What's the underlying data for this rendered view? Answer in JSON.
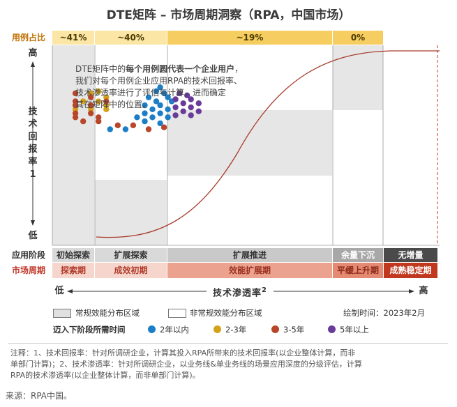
{
  "title": "DTE矩阵 – 市场周期洞察（RPA，中国市场）",
  "share": {
    "label": "用例占比",
    "values": [
      "~41%",
      "~40%",
      "~19%",
      "0%"
    ]
  },
  "y_axis": {
    "high": "高",
    "low": "低",
    "title": "技术回报率",
    "superscript": "1"
  },
  "x_axis": {
    "low": "低",
    "high": "高",
    "title": "技术渗透率",
    "superscript": "2"
  },
  "description": {
    "line1_pre": "DTE矩阵中的",
    "line1_bold": "每个用例圆代表一个企业用户",
    "line1_post": "，",
    "line2": "我们对每个用例企业应用RPA的技术回报率、",
    "line3": "技术渗透率进行了评估与计算，进而确定",
    "line4": "其在矩阵中的位置。"
  },
  "stages": {
    "label": "应用阶段",
    "items": [
      "初始探索",
      "扩展探索",
      "扩展推进",
      "余量下沉",
      "无增量"
    ]
  },
  "cycles": {
    "label": "市场周期",
    "items": [
      "探索期",
      "成效初期",
      "效能扩展期",
      "平缓上升期",
      "成熟稳定期"
    ]
  },
  "legend": {
    "regular": "常规效能分布区域",
    "irregular": "非常规效能分布区域",
    "date": "绘制时间：2023年2月",
    "time_title": "迈入下阶段所需时间",
    "times": [
      {
        "label": "2年以内",
        "color": "#1c7ec6"
      },
      {
        "label": "2-3年",
        "color": "#d4a21a"
      },
      {
        "label": "3-5年",
        "color": "#b8462a"
      },
      {
        "label": "5年以上",
        "color": "#6a3a9a"
      }
    ]
  },
  "notes": {
    "line1": "注释：1、技术回报率：针对所调研企业，计算其投入RPA所带来的技术回报率(以企业整体计算，而非",
    "line2": "单部门计算)；2、技术渗透率：针对所调研企业，以业务线&单业务线的场景应用深度的分级评估，计算",
    "line3": "RPA的技术渗透率(以企业整体计算，而非单部门计算)。"
  },
  "source": "来源：RPA中国。",
  "colors": {
    "blue": "#1c7ec6",
    "gold": "#d4a21a",
    "rust": "#b8462a",
    "purple": "#6a3a9a",
    "curve": "#a83a2a"
  },
  "chart_data": {
    "type": "scatter",
    "description_note": "",
    "x_range": [
      "低",
      "高"
    ],
    "y_range": [
      "低",
      "高"
    ],
    "columns": [
      {
        "stage": "初始探索",
        "cycle": "探索期",
        "share": "~41%"
      },
      {
        "stage": "扩展探索",
        "cycle": "成效初期",
        "share": "~40%"
      },
      {
        "stage": "扩展推进",
        "cycle": "效能扩展期",
        "share": "~19%"
      },
      {
        "stage": "余量下沉",
        "cycle": "平缓上升期",
        "share": "0%"
      },
      {
        "stage": "无增量",
        "cycle": "成熟稳定期",
        "share": ""
      }
    ],
    "series": [
      {
        "name": "2年以内",
        "color": "#1c7ec6",
        "points": [
          [
            0.28,
            0.79
          ],
          [
            0.27,
            0.77
          ],
          [
            0.29,
            0.76
          ],
          [
            0.25,
            0.74
          ],
          [
            0.3,
            0.74
          ],
          [
            0.27,
            0.72
          ],
          [
            0.31,
            0.72
          ],
          [
            0.24,
            0.7
          ],
          [
            0.28,
            0.7
          ],
          [
            0.26,
            0.68
          ],
          [
            0.3,
            0.68
          ],
          [
            0.24,
            0.66
          ],
          [
            0.28,
            0.66
          ],
          [
            0.22,
            0.64
          ],
          [
            0.26,
            0.64
          ],
          [
            0.3,
            0.64
          ],
          [
            0.24,
            0.62
          ],
          [
            0.28,
            0.61
          ],
          [
            0.15,
            0.58
          ],
          [
            0.19,
            0.58
          ]
        ]
      },
      {
        "name": "2-3年",
        "color": "#d4a21a",
        "points": [
          [
            0.12,
            0.77
          ],
          [
            0.1,
            0.76
          ],
          [
            0.14,
            0.74
          ],
          [
            0.08,
            0.72
          ],
          [
            0.12,
            0.72
          ],
          [
            0.1,
            0.7
          ],
          [
            0.14,
            0.7
          ],
          [
            0.06,
            0.68
          ],
          [
            0.1,
            0.68
          ],
          [
            0.14,
            0.68
          ]
        ]
      },
      {
        "name": "3-5年",
        "color": "#b8462a",
        "points": [
          [
            0.06,
            0.76
          ],
          [
            0.1,
            0.74
          ],
          [
            0.06,
            0.72
          ],
          [
            0.14,
            0.72
          ],
          [
            0.06,
            0.7
          ],
          [
            0.1,
            0.7
          ],
          [
            0.06,
            0.66
          ],
          [
            0.1,
            0.66
          ],
          [
            0.06,
            0.64
          ],
          [
            0.12,
            0.64
          ],
          [
            0.08,
            0.62
          ],
          [
            0.12,
            0.62
          ],
          [
            0.17,
            0.6
          ],
          [
            0.21,
            0.6
          ],
          [
            0.25,
            0.58
          ],
          [
            0.29,
            0.59
          ]
        ]
      },
      {
        "name": "5年以上",
        "color": "#6a3a9a",
        "points": [
          [
            0.33,
            0.76
          ],
          [
            0.35,
            0.75
          ],
          [
            0.32,
            0.73
          ],
          [
            0.36,
            0.73
          ],
          [
            0.34,
            0.71
          ],
          [
            0.38,
            0.71
          ],
          [
            0.32,
            0.69
          ],
          [
            0.36,
            0.69
          ],
          [
            0.34,
            0.67
          ],
          [
            0.38,
            0.67
          ],
          [
            0.32,
            0.65
          ],
          [
            0.36,
            0.65
          ]
        ]
      }
    ]
  }
}
